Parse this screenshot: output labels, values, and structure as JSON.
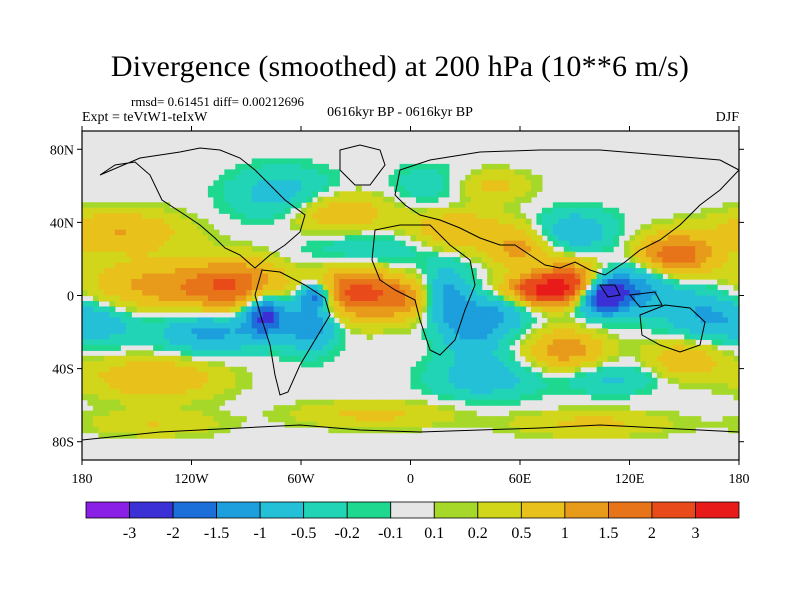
{
  "header": {
    "title": "Divergence (smoothed) at 200 hPa (10**6 m/s)",
    "stats": "rmsd= 0.61451 diff= 0.00212696",
    "experiment": "Expt = teVtW1-teIxW",
    "period": "0616kyr BP - 0616kyr BP",
    "season": "DJF"
  },
  "map": {
    "background_color": "#e6e6e6",
    "lat_ticks": [
      {
        "value": 80,
        "label": "80N"
      },
      {
        "value": 40,
        "label": "40N"
      },
      {
        "value": 0,
        "label": "0"
      },
      {
        "value": -40,
        "label": "40S"
      },
      {
        "value": -80,
        "label": "80S"
      }
    ],
    "lon_ticks": [
      {
        "value": -180,
        "label": "180"
      },
      {
        "value": -120,
        "label": "120W"
      },
      {
        "value": -60,
        "label": "60W"
      },
      {
        "value": 0,
        "label": "0"
      },
      {
        "value": 60,
        "label": "60E"
      },
      {
        "value": 120,
        "label": "120E"
      },
      {
        "value": 180,
        "label": "180"
      }
    ]
  },
  "colorbar": {
    "colors": [
      "#8a1fe6",
      "#3b2fd6",
      "#1c6ed8",
      "#1c9fdc",
      "#24c0d8",
      "#22d4b6",
      "#1ed890",
      "#e6e6e6",
      "#a6d82a",
      "#d2d61a",
      "#e8c21a",
      "#e89b1a",
      "#e8741a",
      "#e84a1a",
      "#e81a1a"
    ],
    "labels": [
      "-3",
      "-2",
      "-1.5",
      "-1",
      "-0.5",
      "-0.2",
      "-0.1",
      "0.1",
      "0.2",
      "0.5",
      "1",
      "1.5",
      "2",
      "3"
    ]
  },
  "chart_data": {
    "type": "heatmap",
    "title": "Divergence (smoothed) at 200 hPa (10**6 m/s)",
    "units": "10**6 m/s",
    "season": "DJF",
    "rmsd": 0.61451,
    "diff": 0.00212696,
    "xlim": [
      -180,
      180
    ],
    "ylim": [
      -90,
      90
    ],
    "levels": [
      -3,
      -2,
      -1.5,
      -1,
      -0.5,
      -0.2,
      -0.1,
      0.1,
      0.2,
      0.5,
      1,
      1.5,
      2,
      3
    ],
    "features": [
      {
        "lon": -135,
        "lat": 5,
        "value": 1.2,
        "sx": 30,
        "sy": 10
      },
      {
        "lon": -95,
        "lat": 5,
        "value": 1.6,
        "sx": 18,
        "sy": 10
      },
      {
        "lon": -30,
        "lat": 2,
        "value": 2.2,
        "sx": 15,
        "sy": 10
      },
      {
        "lon": -5,
        "lat": -2,
        "value": 1.2,
        "sx": 10,
        "sy": 8
      },
      {
        "lon": -80,
        "lat": -10,
        "value": -2.3,
        "sx": 8,
        "sy": 8
      },
      {
        "lon": -55,
        "lat": -15,
        "value": -1.5,
        "sx": 10,
        "sy": 10
      },
      {
        "lon": -52,
        "lat": 0,
        "value": -1.8,
        "sx": 6,
        "sy": 5
      },
      {
        "lon": -110,
        "lat": -20,
        "value": -1.2,
        "sx": 20,
        "sy": 8
      },
      {
        "lon": -160,
        "lat": 35,
        "value": 1.0,
        "sx": 25,
        "sy": 8
      },
      {
        "lon": -170,
        "lat": -15,
        "value": -0.8,
        "sx": 15,
        "sy": 8
      },
      {
        "lon": -140,
        "lat": -45,
        "value": 1.0,
        "sx": 25,
        "sy": 8
      },
      {
        "lon": -70,
        "lat": 55,
        "value": -0.8,
        "sx": 20,
        "sy": 10
      },
      {
        "lon": -40,
        "lat": 45,
        "value": 1.0,
        "sx": 20,
        "sy": 8
      },
      {
        "lon": -20,
        "lat": 25,
        "value": -0.6,
        "sx": 25,
        "sy": 8
      },
      {
        "lon": 25,
        "lat": 35,
        "value": 1.0,
        "sx": 20,
        "sy": 8
      },
      {
        "lon": 20,
        "lat": 0,
        "value": -1.0,
        "sx": 8,
        "sy": 12
      },
      {
        "lon": 35,
        "lat": -15,
        "value": -1.3,
        "sx": 12,
        "sy": 12
      },
      {
        "lon": 55,
        "lat": -5,
        "value": -0.8,
        "sx": 10,
        "sy": 10
      },
      {
        "lon": 72,
        "lat": 3,
        "value": 3.0,
        "sx": 16,
        "sy": 6
      },
      {
        "lon": 90,
        "lat": 8,
        "value": 1.8,
        "sx": 12,
        "sy": 8
      },
      {
        "lon": 105,
        "lat": 0,
        "value": -3.0,
        "sx": 10,
        "sy": 7
      },
      {
        "lon": 125,
        "lat": 5,
        "value": -1.2,
        "sx": 15,
        "sy": 10
      },
      {
        "lon": 145,
        "lat": 22,
        "value": 2.0,
        "sx": 15,
        "sy": 8
      },
      {
        "lon": 160,
        "lat": -10,
        "value": -1.0,
        "sx": 15,
        "sy": 10
      },
      {
        "lon": 90,
        "lat": 35,
        "value": -0.9,
        "sx": 15,
        "sy": 8
      },
      {
        "lon": 60,
        "lat": 25,
        "value": 1.1,
        "sx": 12,
        "sy": 8
      },
      {
        "lon": 85,
        "lat": -30,
        "value": 1.3,
        "sx": 15,
        "sy": 8
      },
      {
        "lon": 40,
        "lat": -45,
        "value": -0.8,
        "sx": 20,
        "sy": 8
      },
      {
        "lon": 110,
        "lat": -45,
        "value": -0.6,
        "sx": 20,
        "sy": 6
      },
      {
        "lon": 150,
        "lat": -35,
        "value": 0.9,
        "sx": 15,
        "sy": 8
      },
      {
        "lon": 10,
        "lat": 60,
        "value": -0.4,
        "sx": 15,
        "sy": 8
      },
      {
        "lon": 45,
        "lat": 60,
        "value": 0.6,
        "sx": 15,
        "sy": 6
      },
      {
        "lon": -20,
        "lat": -65,
        "value": 0.6,
        "sx": 30,
        "sy": 5
      },
      {
        "lon": 100,
        "lat": -70,
        "value": 0.6,
        "sx": 30,
        "sy": 5
      },
      {
        "lon": -140,
        "lat": -70,
        "value": 0.5,
        "sx": 25,
        "sy": 5
      }
    ]
  }
}
